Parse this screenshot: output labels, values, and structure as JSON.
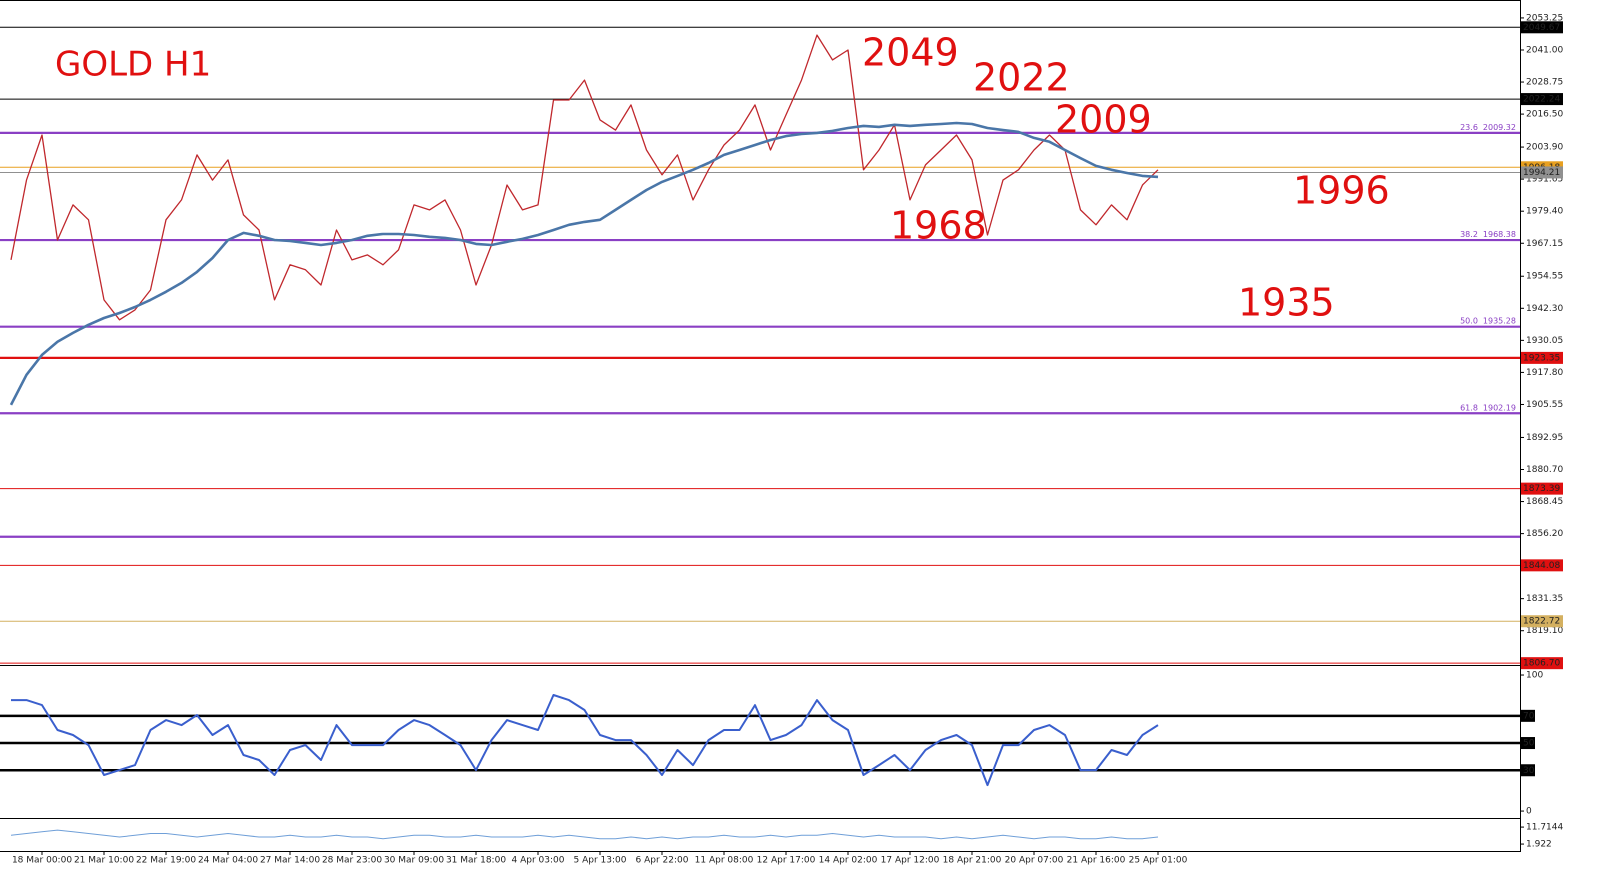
{
  "chart_data": [
    {
      "type": "line",
      "title": "GOLD H1",
      "annotations": [
        "2049",
        "2022",
        "2009",
        "1996",
        "1968",
        "1935"
      ],
      "categories": [
        null,
        null,
        "18 Mar 00:00",
        null,
        null,
        null,
        "21 Mar 10:00",
        null,
        null,
        null,
        "22 Mar 19:00",
        null,
        null,
        null,
        "24 Mar 04:00",
        null,
        null,
        null,
        "27 Mar 14:00",
        null,
        null,
        null,
        "28 Mar 23:00",
        null,
        null,
        null,
        "30 Mar 09:00",
        null,
        null,
        null,
        "31 Mar 18:00",
        null,
        null,
        null,
        "4 Apr 03:00",
        null,
        null,
        null,
        "5 Apr 13:00",
        null,
        null,
        null,
        "6 Apr 22:00",
        null,
        null,
        null,
        "11 Apr 08:00",
        null,
        null,
        null,
        "12 Apr 17:00",
        null,
        null,
        null,
        "14 Apr 02:00",
        null,
        null,
        null,
        "17 Apr 12:00",
        null,
        null,
        null,
        "18 Apr 21:00",
        null,
        null,
        null,
        "20 Apr 07:00",
        null,
        null,
        null,
        "21 Apr 16:00",
        null,
        null,
        null,
        "25 Apr 01:00"
      ],
      "series": [
        {
          "color": "#c0282d",
          "values": [
            1960.8,
            1991.3,
            2008.5,
            1968.4,
            1981.8,
            1976.1,
            1945.5,
            1937.9,
            1941.7,
            1949.3,
            1976.1,
            1983.7,
            2000.9,
            1991.3,
            1999.0,
            1978.0,
            1972.2,
            1945.5,
            1958.9,
            1957.0,
            1951.2,
            1972.2,
            1960.8,
            1962.7,
            1958.9,
            1964.6,
            1981.8,
            1979.9,
            1983.7,
            1972.2,
            1951.2,
            1966.5,
            1989.4,
            1979.9,
            1981.8,
            2021.9,
            2021.9,
            2029.5,
            2014.3,
            2010.4,
            2020.0,
            2002.8,
            1993.3,
            2000.9,
            1983.7,
            1995.2,
            2004.7,
            2010.4,
            2020.0,
            2002.8,
            2016.2,
            2029.5,
            2046.7,
            2037.2,
            2041.0,
            1995.2,
            2002.8,
            2012.4,
            1983.7,
            1997.1,
            2002.8,
            2008.5,
            1999.0,
            1970.3,
            1991.3,
            1995.2,
            2002.8,
            2008.5,
            2002.8,
            1979.9,
            1974.2,
            1981.8,
            1976.1,
            1989.4,
            1995.2
          ]
        },
        {
          "color": "#4a76a8",
          "values": [
            1905.4,
            1916.9,
            1924.5,
            1929.5,
            1932.9,
            1936.0,
            1938.6,
            1940.5,
            1942.8,
            1945.5,
            1948.6,
            1952.0,
            1956.2,
            1961.5,
            1968.4,
            1971.1,
            1970.0,
            1968.4,
            1968.0,
            1967.3,
            1966.5,
            1967.3,
            1968.4,
            1970.0,
            1970.7,
            1970.7,
            1970.3,
            1969.6,
            1969.2,
            1968.4,
            1966.9,
            1966.5,
            1967.7,
            1968.8,
            1970.3,
            1972.2,
            1974.2,
            1975.3,
            1976.1,
            1979.9,
            1983.7,
            1987.5,
            1990.6,
            1992.9,
            1995.2,
            1997.8,
            2000.9,
            2002.8,
            2004.7,
            2006.6,
            2008.1,
            2008.9,
            2009.3,
            2010.1,
            2011.2,
            2012.0,
            2011.6,
            2012.4,
            2012.0,
            2012.4,
            2012.7,
            2013.1,
            2012.7,
            2011.2,
            2010.4,
            2009.7,
            2007.4,
            2005.9,
            2002.8,
            1999.7,
            1996.7,
            1995.2,
            1994.0,
            1992.9,
            1992.5
          ]
        }
      ],
      "ylim": [
        1806.0,
        2060.1
      ],
      "yticks": [
        2053.25,
        {
          "value": 2041,
          "label": "2041.00"
        },
        2028.75,
        {
          "value": 2016.5,
          "label": "2016.50"
        },
        {
          "value": 2003.9,
          "label": "2003.90"
        },
        1991.65,
        {
          "value": 1979.4,
          "label": "1979.40"
        },
        1967.15,
        1954.55,
        {
          "value": 1942.3,
          "label": "1942.30"
        },
        1930.05,
        {
          "value": 1917.8,
          "label": "1917.80"
        },
        1905.55,
        1892.95,
        {
          "value": 1880.7,
          "label": "1880.70"
        },
        1868.45,
        {
          "value": 1856.2,
          "label": "1856.20"
        },
        1831.35,
        {
          "value": 1819.1,
          "label": "1819.10"
        }
      ],
      "levels": [
        {
          "value": 2049.67,
          "color": "#000000",
          "weight": "thin",
          "tag": true
        },
        {
          "value": 2022.24,
          "color": "#000000",
          "weight": "thin",
          "tag": true
        },
        {
          "value": 2009.32,
          "color": "#8a3fc4",
          "weight": "thick",
          "fib": "23.6"
        },
        {
          "value": 1996.18,
          "color": "#e8a020",
          "weight": "thin",
          "tag": true
        },
        {
          "value": 1994.21,
          "color": "#909090",
          "weight": "thin",
          "tag": true
        },
        {
          "value": 1968.38,
          "color": "#8a3fc4",
          "weight": "thick",
          "fib": "38.2"
        },
        {
          "value": 1935.28,
          "color": "#8a3fc4",
          "weight": "thick",
          "fib": "50.0"
        },
        {
          "value": 1923.35,
          "color": "#e01010",
          "weight": "thick",
          "tag": true
        },
        {
          "value": 1902.19,
          "color": "#8a3fc4",
          "weight": "thick",
          "fib": "61.8"
        },
        {
          "value": 1873.39,
          "color": "#e01010",
          "weight": "thin",
          "tag": true
        },
        {
          "value": 1855.0,
          "color": "#8a3fc4",
          "weight": "thick"
        },
        {
          "value": 1844.08,
          "color": "#e01010",
          "weight": "thin",
          "tag": true
        },
        {
          "value": 1822.72,
          "color": "#d4b060",
          "weight": "thin",
          "tag": true
        },
        {
          "value": 1806.7,
          "label": "1806.70",
          "color": "#e01010",
          "weight": "thin",
          "tag": true
        }
      ]
    },
    {
      "type": "line",
      "series": [
        {
          "color": "#3a5fcd",
          "values": [
            81.6,
            81.6,
            77.9,
            59.6,
            55.9,
            48.5,
            26.5,
            30.1,
            33.8,
            59.6,
            66.9,
            63.2,
            70.6,
            55.9,
            63.2,
            41.2,
            37.5,
            26.5,
            44.9,
            48.5,
            37.5,
            63.2,
            48.5,
            48.5,
            48.5,
            59.6,
            66.9,
            63.2,
            55.9,
            48.5,
            30.1,
            52.2,
            66.9,
            63.2,
            59.6,
            85.3,
            81.6,
            74.3,
            55.9,
            52.2,
            52.2,
            41.2,
            26.5,
            44.9,
            33.8,
            52.2,
            59.6,
            59.6,
            77.9,
            52.2,
            55.9,
            63.2,
            81.6,
            66.9,
            59.6,
            26.5,
            33.8,
            41.2,
            30.1,
            44.9,
            52.2,
            55.9,
            48.5,
            19.1,
            48.5,
            48.5,
            59.6,
            63.2,
            55.9,
            30.1,
            30.1,
            44.9,
            41.2,
            55.9,
            63.2
          ]
        }
      ],
      "ylim": [
        -5.1,
        105.9
      ],
      "yticks": [
        0,
        100
      ],
      "levels": [
        70,
        50,
        30
      ]
    },
    {
      "type": "line",
      "series": [
        {
          "color": "#6f9fd8",
          "values": [
            7,
            8,
            9,
            10,
            9,
            8,
            7,
            6,
            7,
            8,
            8,
            7,
            6,
            7,
            8,
            7,
            6,
            6,
            7,
            6,
            6,
            7,
            6,
            6,
            5,
            6,
            7,
            7,
            6,
            6,
            7,
            6,
            6,
            6,
            7,
            6,
            7,
            6,
            5,
            5,
            6,
            5,
            6,
            5,
            6,
            6,
            7,
            6,
            6,
            7,
            6,
            7,
            7,
            8,
            7,
            6,
            7,
            6,
            6,
            6,
            5,
            6,
            5,
            6,
            7,
            6,
            5,
            6,
            6,
            5,
            5,
            6,
            5,
            5,
            6
          ]
        }
      ],
      "ylim": [
        -1.5,
        15.8
      ],
      "yticks": [
        11.7144,
        1.922
      ]
    }
  ]
}
